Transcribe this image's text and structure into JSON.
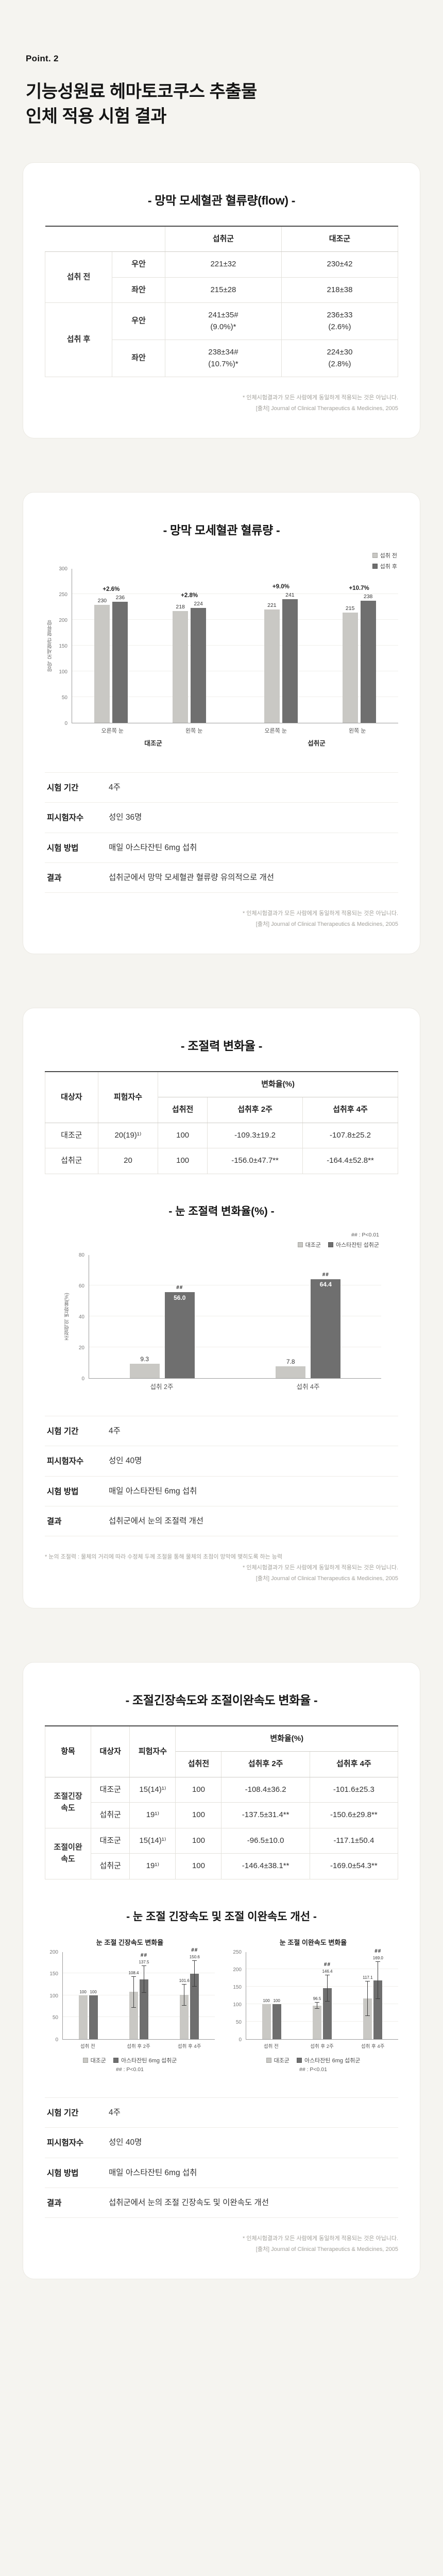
{
  "page": {
    "point_label": "Point. 2",
    "title_line1": "기능성원료 헤마토코쿠스 추출물",
    "title_line2": "인체 적용 시험 결과"
  },
  "footnotes": {
    "disclaimer": "* 인체시험결과가 모든 사람에게 동일하게 적용되는 것은 아닙니다.",
    "source": "[출처] Journal of Clinical Therapeutics & Medicines, 2005",
    "accommodation_note": "* 눈의 조절력 : 물체의 거리에 따라 수정체 두께 조절을 통해 물체의 초점이 망막에 맺히도록 하는 능력"
  },
  "section1": {
    "title": "- 망막 모세혈관 혈류량(flow) -",
    "table": {
      "col_intake": "섭취군",
      "col_control": "대조군",
      "rows": [
        {
          "period": "섭취 전",
          "eye": "우안",
          "intake": "221±32",
          "control": "230±42"
        },
        {
          "eye": "좌안",
          "intake": "215±28",
          "control": "218±38"
        },
        {
          "period": "섭취 후",
          "eye": "우안",
          "intake": "241±35#\n(9.0%)*",
          "control": "236±33\n(2.6%)"
        },
        {
          "eye": "좌안",
          "intake": "238±34#\n(10.7%)*",
          "control": "224±30\n(2.8%)"
        }
      ]
    }
  },
  "section2": {
    "title": "- 망막 모세혈관 혈류량 -",
    "info": [
      {
        "label": "시험 기간",
        "value": "4주"
      },
      {
        "label": "피시험자수",
        "value": "성인 36명"
      },
      {
        "label": "시험 방법",
        "value": "매일 아스타잔틴 6mg 섭취"
      },
      {
        "label": "결과",
        "value": "섭취군에서 망막 모세혈관 혈류량 유의적으로 개선"
      }
    ]
  },
  "section3": {
    "title": "- 조절력 변화율 -",
    "chart_title": "- 눈 조절력 변화율(%) -",
    "table": {
      "h_subject": "대상자",
      "h_n": "피험자수",
      "h_change": "변화율(%)",
      "h_pre": "섭취전",
      "h_2w": "섭취후 2주",
      "h_4w": "섭취후 4주",
      "rows": [
        {
          "subject": "대조군",
          "n": "20(19)¹⁾",
          "pre": "100",
          "w2": "-109.3±19.2",
          "w4": "-107.8±25.2"
        },
        {
          "subject": "섭취군",
          "n": "20",
          "pre": "100",
          "w2": "-156.0±47.7**",
          "w4": "-164.4±52.8**"
        }
      ]
    },
    "info": [
      {
        "label": "시험 기간",
        "value": "4주"
      },
      {
        "label": "피시험자수",
        "value": "성인 40명"
      },
      {
        "label": "시험 방법",
        "value": "매일 아스타잔틴 6mg 섭취"
      },
      {
        "label": "결과",
        "value": "섭취군에서 눈의 조절력 개선"
      }
    ]
  },
  "section4": {
    "title": "- 조절긴장속도와 조절이완속도 변화율 -",
    "chart_section_title": "- 눈 조절 긴장속도 및 조절 이완속도 개선 -",
    "table": {
      "h_item": "항목",
      "h_subject": "대상자",
      "h_n": "피험자수",
      "h_change": "변화율(%)",
      "h_pre": "섭취전",
      "h_2w": "섭취후 2주",
      "h_4w": "섭취후 4주",
      "rows": [
        {
          "item": "조절긴장\n속도",
          "subject": "대조군",
          "n": "15(14)¹⁾",
          "pre": "100",
          "w2": "-108.4±36.2",
          "w4": "-101.6±25.3"
        },
        {
          "subject": "섭취군",
          "n": "19¹⁾",
          "pre": "100",
          "w2": "-137.5±31.4**",
          "w4": "-150.6±29.8**"
        },
        {
          "item": "조절이완\n속도",
          "subject": "대조군",
          "n": "15(14)¹⁾",
          "pre": "100",
          "w2": "-96.5±10.0",
          "w4": "-117.1±50.4"
        },
        {
          "subject": "섭취군",
          "n": "19¹⁾",
          "pre": "100",
          "w2": "-146.4±38.1**",
          "w4": "-169.0±54.3**"
        }
      ]
    },
    "info": [
      {
        "label": "시험 기간",
        "value": "4주"
      },
      {
        "label": "피시험자수",
        "value": "성인 40명"
      },
      {
        "label": "시험 방법",
        "value": "매일 아스타잔틴 6mg 섭취"
      },
      {
        "label": "결과",
        "value": "섭취군에서 눈의 조절 긴장속도 및 이완속도 개선"
      }
    ]
  },
  "chart_data": [
    {
      "id": "retina-flow",
      "type": "bar",
      "title": "망막 모세혈관 혈류량",
      "ylabel": "망막 모세혈관 혈류량",
      "ylim": [
        0,
        300
      ],
      "yticks": [
        0,
        50,
        100,
        150,
        200,
        250,
        300
      ],
      "legend": [
        "섭취 전",
        "섭취 후"
      ],
      "categories": [
        "오른쪽 눈",
        "왼쪽 눈",
        "오른쪽 눈",
        "왼쪽 눈"
      ],
      "group_labels": [
        "대조군",
        "섭취군"
      ],
      "annotations": [
        "+2.6%",
        "+2.8%",
        "+9.0%",
        "+10.7%"
      ],
      "series": [
        {
          "name": "섭취 전",
          "values": [
            230,
            218,
            221,
            215
          ],
          "labels": [
            "230",
            "218",
            "221",
            "215"
          ]
        },
        {
          "name": "섭취 후",
          "values": [
            236,
            224,
            241,
            238
          ],
          "labels": [
            "236",
            "224",
            "241",
            "238"
          ]
        }
      ]
    },
    {
      "id": "accommodation-change",
      "type": "bar",
      "title": "- 눈 조절력 변화율(%) -",
      "ylabel": "조절력의 변화율(%)",
      "ylim": [
        0,
        80
      ],
      "yticks": [
        0,
        20,
        40,
        60,
        80
      ],
      "note": "## : P<0.01",
      "legend": [
        "대조군",
        "아스타잔틴 섭취군"
      ],
      "categories": [
        "섭취 2주",
        "섭취 4주"
      ],
      "series": [
        {
          "name": "대조군",
          "values": [
            9.3,
            7.8
          ],
          "labels": [
            "9.3",
            "7.8"
          ]
        },
        {
          "name": "아스타잔틴 섭취군",
          "values": [
            56.0,
            64.4
          ],
          "labels": [
            "56.0",
            "64.4"
          ],
          "sig": [
            "##",
            "##"
          ]
        }
      ]
    },
    {
      "id": "tension-speed",
      "type": "bar",
      "title": "눈 조절 긴장속도 변화율",
      "ylim": [
        0,
        200
      ],
      "yticks": [
        0,
        50,
        100,
        150,
        200
      ],
      "note": "## : P<0.01",
      "legend": [
        "대조군",
        "아스타잔틴 6mg 섭취군"
      ],
      "categories": [
        "섭취 전",
        "섭취 후 2주",
        "섭취 후 4주"
      ],
      "series": [
        {
          "name": "대조군",
          "values": [
            100,
            108.4,
            101.6
          ],
          "errors": [
            0,
            36.2,
            25.3
          ],
          "labels": [
            "100",
            "108.4",
            "101.6"
          ]
        },
        {
          "name": "아스타잔틴 6mg 섭취군",
          "values": [
            100,
            137.5,
            150.6
          ],
          "errors": [
            0,
            31.4,
            29.8
          ],
          "labels": [
            "100",
            "137.5",
            "150.6"
          ],
          "sig": [
            "",
            "##",
            "##"
          ]
        }
      ]
    },
    {
      "id": "relaxation-speed",
      "type": "bar",
      "title": "눈 조절 이완속도 변화율",
      "ylim": [
        0,
        250
      ],
      "yticks": [
        0,
        50,
        100,
        150,
        200,
        250
      ],
      "note": "## : P<0.01",
      "legend": [
        "대조군",
        "아스타잔틴 6mg 섭취군"
      ],
      "categories": [
        "섭취 전",
        "섭취 후 2주",
        "섭취 후 4주"
      ],
      "series": [
        {
          "name": "대조군",
          "values": [
            100,
            96.5,
            117.1
          ],
          "errors": [
            0,
            10.0,
            50.4
          ],
          "labels": [
            "100",
            "96.5",
            "117.1"
          ]
        },
        {
          "name": "아스타잔틴 6mg 섭취군",
          "values": [
            100,
            146.4,
            169.0
          ],
          "errors": [
            0,
            38.1,
            54.3
          ],
          "labels": [
            "100",
            "146.4",
            "169.0"
          ],
          "sig": [
            "",
            "##",
            "##"
          ]
        }
      ]
    }
  ]
}
